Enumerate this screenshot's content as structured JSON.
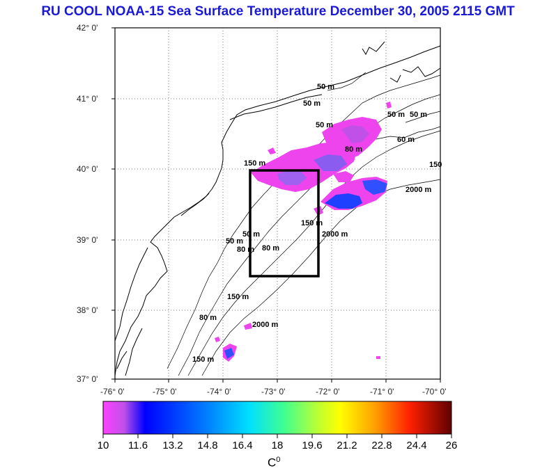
{
  "title": "RU COOL  NOAA-15 Sea Surface Temperature December 30, 2005 2115 GMT",
  "map": {
    "lat_labels": [
      "42° 0'",
      "41° 0'",
      "40° 0'",
      "39° 0'",
      "38° 0'",
      "37° 0'"
    ],
    "lon_labels": [
      "-76° 0'",
      "-75° 0'",
      "-74° 0'",
      "-73° 0'",
      "-72° 0'",
      "-71° 0'",
      "-70° 0'"
    ],
    "lat_range": [
      37,
      42
    ],
    "lon_range": [
      -76,
      -70
    ],
    "study_box": {
      "lon": [
        -73.5,
        -72.2
      ],
      "lat": [
        38.5,
        40.0
      ]
    },
    "contour_labels": [
      "50 m",
      "50 m",
      "50 m",
      "50 m",
      "50 m",
      "60 m",
      "80 m",
      "150",
      "2000 m",
      "150 m",
      "2000 m",
      "50 m",
      "80 m",
      "50 m",
      "80 m",
      "150 m",
      "2000 m",
      "80 m",
      "150 m",
      "150 m"
    ]
  },
  "colorbar": {
    "ticks": [
      "10",
      "11.6",
      "13.2",
      "14.8",
      "16.4",
      "18",
      "19.6",
      "21.2",
      "22.8",
      "24.4",
      "26"
    ],
    "unit": "C",
    "unit_sup": "0",
    "colors": [
      "#ff40ff",
      "#c050e8",
      "#0000ff",
      "#0080ff",
      "#00e0ff",
      "#40ff90",
      "#c0ff30",
      "#ffff00",
      "#ffa000",
      "#ff4000",
      "#e00000",
      "#600000"
    ]
  }
}
